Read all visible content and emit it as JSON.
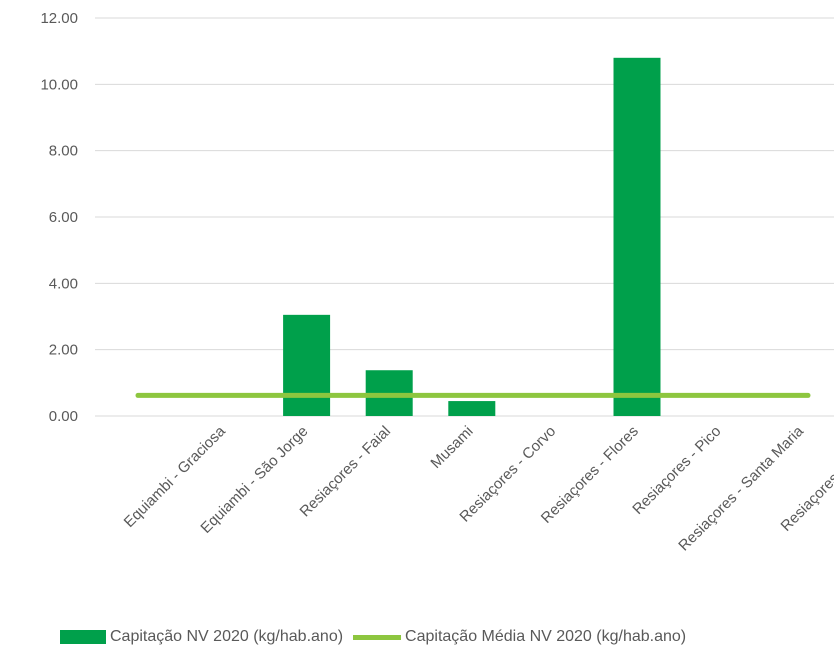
{
  "chart_data": {
    "type": "bar",
    "categories": [
      "Equiambi - Graciosa",
      "Equiambi - São Jorge",
      "Resiaçores - Faial",
      "Musami",
      "Resiaçores - Corvo",
      "Resiaçores - Flores",
      "Resiaçores - Pico",
      "Resiaçores - Santa Maria",
      "Resiaçores - Terceira"
    ],
    "series": [
      {
        "name": "Capitação NV 2020 (kg/hab.ano)",
        "type": "bar",
        "color": "#00a04b",
        "values": [
          0,
          3.05,
          1.38,
          0.45,
          0,
          10.8,
          0,
          0,
          0
        ]
      },
      {
        "name": "Capitação Média NV 2020 (kg/hab.ano)",
        "type": "line",
        "color": "#8dc63f",
        "values": [
          0.62,
          0.62,
          0.62,
          0.62,
          0.62,
          0.62,
          0.62,
          0.62,
          0.62
        ]
      }
    ],
    "yticks": [
      "0.00",
      "2.00",
      "4.00",
      "6.00",
      "8.00",
      "10.00",
      "12.00"
    ],
    "ylim": [
      0,
      12
    ],
    "grid": true,
    "legend_position": "bottom"
  }
}
